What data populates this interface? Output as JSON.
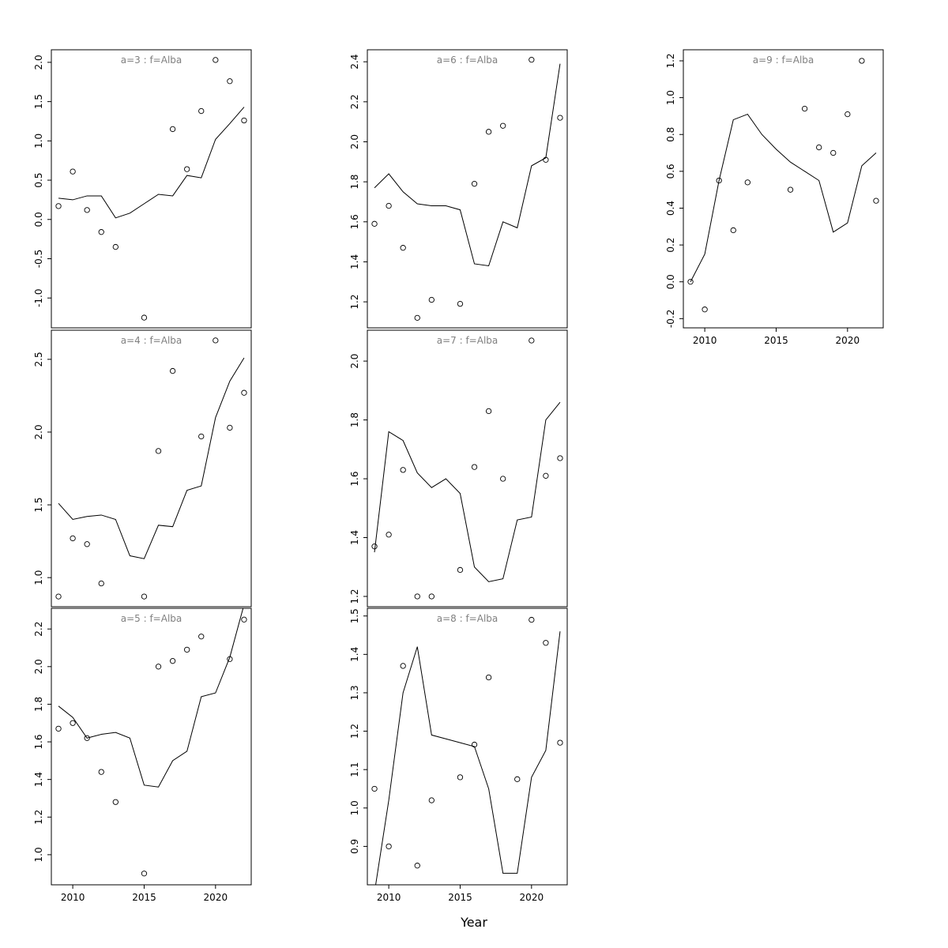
{
  "figure": {
    "xlabel": "Year",
    "background": "#ffffff",
    "line_color": "#000000",
    "point_color": "#000000",
    "title_color": "#808080"
  },
  "chart_data": [
    {
      "type": "scatter-line",
      "title": "a=3  :  f=Alba",
      "xlim": [
        2008.5,
        2022.5
      ],
      "ylim": [
        -1.38,
        2.16
      ],
      "xticks": [
        2010,
        2015,
        2020
      ],
      "yticks": [
        -1.0,
        -0.5,
        0.0,
        0.5,
        1.0,
        1.5,
        2.0
      ],
      "points": [
        [
          2009,
          0.17
        ],
        [
          2010,
          0.61
        ],
        [
          2011,
          0.12
        ],
        [
          2012,
          -0.16
        ],
        [
          2013,
          -0.35
        ],
        [
          2015,
          -1.25
        ],
        [
          2017,
          1.15
        ],
        [
          2018,
          0.64
        ],
        [
          2019,
          1.38
        ],
        [
          2020,
          2.03
        ],
        [
          2021,
          1.76
        ],
        [
          2022,
          1.26
        ]
      ],
      "line": [
        [
          2009,
          0.27
        ],
        [
          2010,
          0.25
        ],
        [
          2011,
          0.3
        ],
        [
          2012,
          0.3
        ],
        [
          2013,
          0.02
        ],
        [
          2014,
          0.08
        ],
        [
          2015,
          0.2
        ],
        [
          2016,
          0.32
        ],
        [
          2017,
          0.3
        ],
        [
          2018,
          0.56
        ],
        [
          2019,
          0.53
        ],
        [
          2020,
          1.02
        ],
        [
          2021,
          1.22
        ],
        [
          2022,
          1.43
        ]
      ]
    },
    {
      "type": "scatter-line",
      "title": "a=4  :  f=Alba",
      "xlim": [
        2008.5,
        2022.5
      ],
      "ylim": [
        0.8,
        2.7
      ],
      "xticks": [
        2010,
        2015,
        2020
      ],
      "yticks": [
        1.0,
        1.5,
        2.0,
        2.5
      ],
      "points": [
        [
          2009,
          0.87
        ],
        [
          2010,
          1.27
        ],
        [
          2011,
          1.23
        ],
        [
          2012,
          0.96
        ],
        [
          2015,
          0.87
        ],
        [
          2016,
          1.87
        ],
        [
          2017,
          2.42
        ],
        [
          2019,
          1.97
        ],
        [
          2020,
          2.63
        ],
        [
          2021,
          2.03
        ],
        [
          2022,
          2.27
        ]
      ],
      "line": [
        [
          2009,
          1.51
        ],
        [
          2010,
          1.4
        ],
        [
          2011,
          1.42
        ],
        [
          2012,
          1.43
        ],
        [
          2013,
          1.4
        ],
        [
          2014,
          1.15
        ],
        [
          2015,
          1.13
        ],
        [
          2016,
          1.36
        ],
        [
          2017,
          1.35
        ],
        [
          2018,
          1.6
        ],
        [
          2019,
          1.63
        ],
        [
          2020,
          2.1
        ],
        [
          2021,
          2.35
        ],
        [
          2022,
          2.51
        ]
      ]
    },
    {
      "type": "scatter-line",
      "title": "a=5  :  f=Alba",
      "xlim": [
        2008.5,
        2022.5
      ],
      "ylim": [
        0.84,
        2.31
      ],
      "xticks": [
        2010,
        2015,
        2020
      ],
      "yticks": [
        1.0,
        1.2,
        1.4,
        1.6,
        1.8,
        2.0,
        2.2
      ],
      "points": [
        [
          2009,
          1.67
        ],
        [
          2010,
          1.7
        ],
        [
          2011,
          1.62
        ],
        [
          2012,
          1.44
        ],
        [
          2013,
          1.28
        ],
        [
          2015,
          0.9
        ],
        [
          2016,
          2.0
        ],
        [
          2017,
          2.03
        ],
        [
          2018,
          2.09
        ],
        [
          2019,
          2.16
        ],
        [
          2021,
          2.04
        ],
        [
          2022,
          2.25
        ]
      ],
      "line": [
        [
          2009,
          1.79
        ],
        [
          2010,
          1.73
        ],
        [
          2011,
          1.62
        ],
        [
          2012,
          1.64
        ],
        [
          2013,
          1.65
        ],
        [
          2014,
          1.62
        ],
        [
          2015,
          1.37
        ],
        [
          2016,
          1.36
        ],
        [
          2017,
          1.5
        ],
        [
          2018,
          1.55
        ],
        [
          2019,
          1.84
        ],
        [
          2020,
          1.86
        ],
        [
          2021,
          2.05
        ],
        [
          2022,
          2.33
        ]
      ]
    },
    {
      "type": "scatter-line",
      "title": "a=6  :  f=Alba",
      "xlim": [
        2008.5,
        2022.5
      ],
      "ylim": [
        1.07,
        2.46
      ],
      "xticks": [
        2010,
        2015,
        2020
      ],
      "yticks": [
        1.2,
        1.4,
        1.6,
        1.8,
        2.0,
        2.2,
        2.4
      ],
      "points": [
        [
          2009,
          1.59
        ],
        [
          2010,
          1.68
        ],
        [
          2011,
          1.47
        ],
        [
          2012,
          1.12
        ],
        [
          2013,
          1.21
        ],
        [
          2015,
          1.19
        ],
        [
          2016,
          1.79
        ],
        [
          2017,
          2.05
        ],
        [
          2018,
          2.08
        ],
        [
          2020,
          2.41
        ],
        [
          2021,
          1.91
        ],
        [
          2022,
          2.12
        ]
      ],
      "line": [
        [
          2009,
          1.77
        ],
        [
          2010,
          1.84
        ],
        [
          2011,
          1.75
        ],
        [
          2012,
          1.69
        ],
        [
          2013,
          1.68
        ],
        [
          2014,
          1.68
        ],
        [
          2015,
          1.66
        ],
        [
          2016,
          1.39
        ],
        [
          2017,
          1.38
        ],
        [
          2018,
          1.6
        ],
        [
          2019,
          1.57
        ],
        [
          2020,
          1.88
        ],
        [
          2021,
          1.92
        ],
        [
          2022,
          2.39
        ]
      ]
    },
    {
      "type": "scatter-line",
      "title": "a=7  :  f=Alba",
      "xlim": [
        2008.5,
        2022.5
      ],
      "ylim": [
        1.165,
        2.105
      ],
      "xticks": [
        2010,
        2015,
        2020
      ],
      "yticks": [
        1.2,
        1.4,
        1.6,
        1.8,
        2.0
      ],
      "points": [
        [
          2009,
          1.37
        ],
        [
          2010,
          1.41
        ],
        [
          2011,
          1.63
        ],
        [
          2012,
          1.2
        ],
        [
          2013,
          1.2
        ],
        [
          2015,
          1.29
        ],
        [
          2016,
          1.64
        ],
        [
          2017,
          1.83
        ],
        [
          2018,
          1.6
        ],
        [
          2020,
          2.07
        ],
        [
          2021,
          1.61
        ],
        [
          2022,
          1.67
        ]
      ],
      "line": [
        [
          2009,
          1.35
        ],
        [
          2010,
          1.76
        ],
        [
          2011,
          1.73
        ],
        [
          2012,
          1.62
        ],
        [
          2013,
          1.57
        ],
        [
          2014,
          1.6
        ],
        [
          2015,
          1.55
        ],
        [
          2016,
          1.3
        ],
        [
          2017,
          1.25
        ],
        [
          2018,
          1.26
        ],
        [
          2019,
          1.46
        ],
        [
          2020,
          1.47
        ],
        [
          2021,
          1.8
        ],
        [
          2022,
          1.86
        ]
      ]
    },
    {
      "type": "scatter-line",
      "title": "a=8  :  f=Alba",
      "xlim": [
        2008.5,
        2022.5
      ],
      "ylim": [
        0.8,
        1.52
      ],
      "xticks": [
        2010,
        2015,
        2020
      ],
      "yticks": [
        0.9,
        1.0,
        1.1,
        1.2,
        1.3,
        1.4,
        1.5
      ],
      "points": [
        [
          2009,
          1.05
        ],
        [
          2010,
          0.9
        ],
        [
          2011,
          1.37
        ],
        [
          2012,
          0.85
        ],
        [
          2013,
          1.02
        ],
        [
          2015,
          1.08
        ],
        [
          2016,
          1.165
        ],
        [
          2017,
          1.34
        ],
        [
          2019,
          1.075
        ],
        [
          2020,
          1.49
        ],
        [
          2021,
          1.43
        ],
        [
          2022,
          1.17
        ]
      ],
      "line": [
        [
          2009,
          0.78
        ],
        [
          2010,
          1.02
        ],
        [
          2011,
          1.3
        ],
        [
          2012,
          1.42
        ],
        [
          2013,
          1.19
        ],
        [
          2014,
          1.18
        ],
        [
          2015,
          1.17
        ],
        [
          2016,
          1.16
        ],
        [
          2017,
          1.05
        ],
        [
          2018,
          0.83
        ],
        [
          2019,
          0.83
        ],
        [
          2020,
          1.08
        ],
        [
          2021,
          1.15
        ],
        [
          2022,
          1.46
        ]
      ]
    },
    {
      "type": "scatter-line",
      "title": "a=9  :  f=Alba",
      "xlim": [
        2008.5,
        2022.5
      ],
      "ylim": [
        -0.25,
        1.26
      ],
      "xticks": [
        2010,
        2015,
        2020
      ],
      "yticks": [
        -0.2,
        0.0,
        0.2,
        0.4,
        0.6,
        0.8,
        1.0,
        1.2
      ],
      "points": [
        [
          2009,
          0.0
        ],
        [
          2010,
          -0.15
        ],
        [
          2011,
          0.55
        ],
        [
          2012,
          0.28
        ],
        [
          2013,
          0.54
        ],
        [
          2016,
          0.5
        ],
        [
          2017,
          0.94
        ],
        [
          2018,
          0.73
        ],
        [
          2019,
          0.7
        ],
        [
          2020,
          0.91
        ],
        [
          2021,
          1.2
        ],
        [
          2022,
          0.44
        ]
      ],
      "line": [
        [
          2009,
          0.0
        ],
        [
          2010,
          0.15
        ],
        [
          2011,
          0.55
        ],
        [
          2012,
          0.88
        ],
        [
          2013,
          0.91
        ],
        [
          2014,
          0.8
        ],
        [
          2015,
          0.72
        ],
        [
          2016,
          0.65
        ],
        [
          2017,
          0.6
        ],
        [
          2018,
          0.55
        ],
        [
          2019,
          0.27
        ],
        [
          2020,
          0.32
        ],
        [
          2021,
          0.63
        ],
        [
          2022,
          0.7
        ]
      ]
    }
  ]
}
